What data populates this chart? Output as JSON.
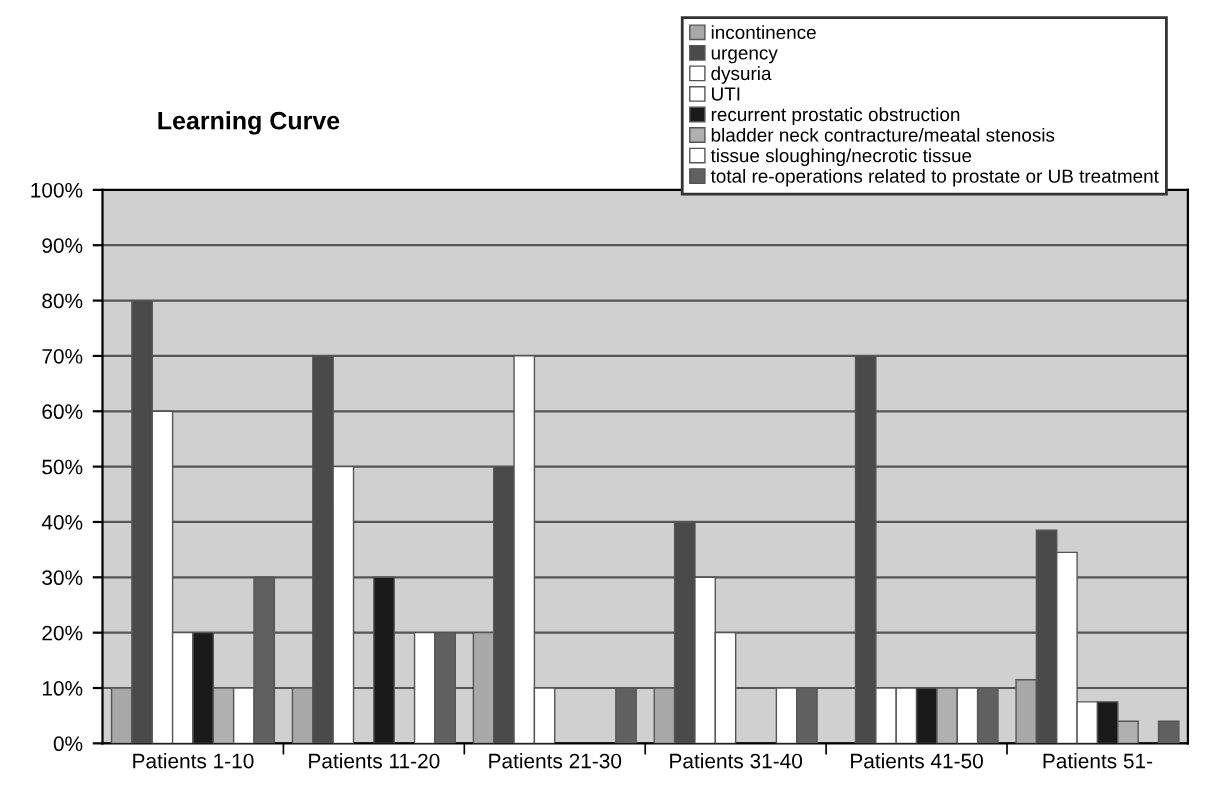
{
  "chart_data": {
    "type": "bar",
    "title": "Learning Curve",
    "categories": [
      "Patients 1-10",
      "Patients 11-20",
      "Patients 21-30",
      "Patients 31-40",
      "Patients 41-50",
      "Patients 51-"
    ],
    "series": [
      {
        "name": "incontinence",
        "color": "#a8a8a8",
        "values": [
          10,
          10,
          20,
          10,
          0,
          11.5
        ]
      },
      {
        "name": "urgency",
        "color": "#4a4a4a",
        "values": [
          80,
          70,
          50,
          40,
          70,
          38.5
        ]
      },
      {
        "name": "dysuria",
        "color": "#ffffff",
        "values": [
          60,
          50,
          70,
          30,
          10,
          34.5
        ]
      },
      {
        "name": "UTI",
        "color": "#ffffff",
        "values": [
          20,
          0,
          10,
          20,
          10,
          7.5
        ]
      },
      {
        "name": "recurrent prostatic obstruction",
        "color": "#1a1a1a",
        "values": [
          20,
          30,
          0,
          0,
          10,
          7.5
        ]
      },
      {
        "name": "bladder neck contracture/meatal stenosis",
        "color": "#b0b0b0",
        "values": [
          10,
          0,
          0,
          0,
          10,
          4
        ]
      },
      {
        "name": "tissue sloughing/necrotic tissue",
        "color": "#ffffff",
        "values": [
          10,
          20,
          0,
          10,
          10,
          0
        ]
      },
      {
        "name": "total re-operations related to prostate or UB treatment",
        "color": "#606060",
        "values": [
          30,
          20,
          10,
          10,
          10,
          4
        ]
      }
    ],
    "ylim": [
      0,
      100
    ],
    "yticks": [
      {
        "value": 0,
        "label": "0%"
      },
      {
        "value": 10,
        "label": "10%"
      },
      {
        "value": 20,
        "label": "20%"
      },
      {
        "value": 30,
        "label": "30%"
      },
      {
        "value": 40,
        "label": "40%"
      },
      {
        "value": 50,
        "label": "50%"
      },
      {
        "value": 60,
        "label": "60%"
      },
      {
        "value": 70,
        "label": "70%"
      },
      {
        "value": 80,
        "label": "80%"
      },
      {
        "value": 90,
        "label": "90%"
      },
      {
        "value": 100,
        "label": "100%"
      }
    ],
    "grid": "y",
    "legend": "top right"
  }
}
